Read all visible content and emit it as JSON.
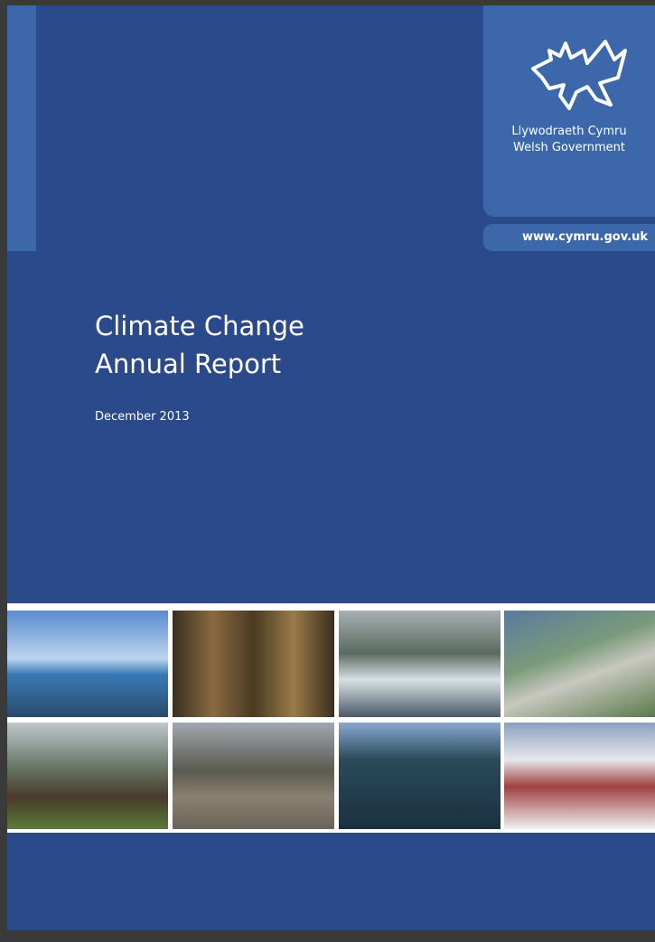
{
  "brand": {
    "welsh": "Llywodraeth Cymru",
    "english": "Welsh Government",
    "url": "www.cymru.gov.uk"
  },
  "title": {
    "line1": "Climate Change",
    "line2": "Annual Report"
  },
  "date": "December 2013"
}
